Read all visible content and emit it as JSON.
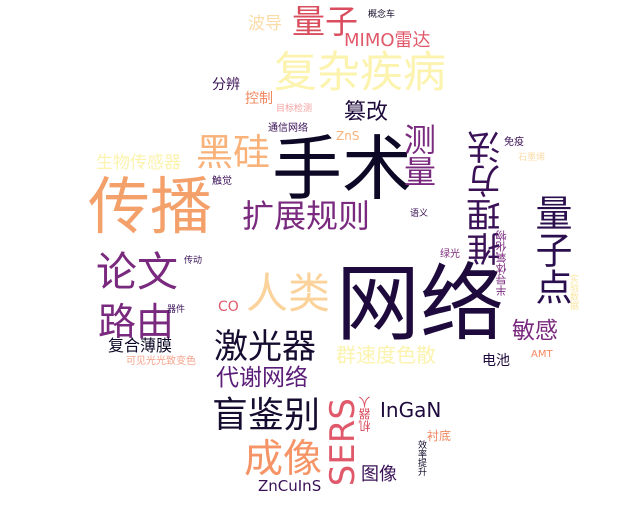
{
  "words": [
    {
      "id": "wangluo",
      "text": "网络",
      "color": "#1e0a3c"
    },
    {
      "id": "shoushu",
      "text": "手术",
      "color": "#0d0826"
    },
    {
      "id": "chuanbo",
      "text": "传播",
      "color": "#f4a06a"
    },
    {
      "id": "fuza-jibing",
      "text": "复杂疾病",
      "color": "#fbf3ae"
    },
    {
      "id": "liangzi",
      "text": "量子",
      "color": "#d94d5e"
    },
    {
      "id": "heigui",
      "text": "黑硅",
      "color": "#f8b27a"
    },
    {
      "id": "kuozhan-guize",
      "text": "扩展规则",
      "color": "#7a2a7e"
    },
    {
      "id": "celiang",
      "text": "测量",
      "color": "#7a2a7e"
    },
    {
      "id": "tuili-fangfa",
      "text": "推理方法",
      "color": "#3a1156"
    },
    {
      "id": "liangzidian",
      "text": "量子点",
      "color": "#2a0e4e"
    },
    {
      "id": "lunwen",
      "text": "论文",
      "color": "#7a2a7e"
    },
    {
      "id": "renlei",
      "text": "人类",
      "color": "#fad29a"
    },
    {
      "id": "luyou",
      "text": "路由",
      "color": "#7a2a7e"
    },
    {
      "id": "jiguangqi",
      "text": "激光器",
      "color": "#160c30"
    },
    {
      "id": "mangjianbie",
      "text": "盲鉴别",
      "color": "#160c30"
    },
    {
      "id": "chengxiang",
      "text": "成像",
      "color": "#f59466"
    },
    {
      "id": "sers",
      "text": "SERS",
      "color": "#e0596a"
    },
    {
      "id": "cuangai",
      "text": "篡改",
      "color": "#1e0a3c"
    },
    {
      "id": "mimo-leida",
      "text": "MIMO雷达",
      "color": "#e0596a"
    },
    {
      "id": "bodao",
      "text": "波导",
      "color": "#fbdca8"
    },
    {
      "id": "gainianche",
      "text": "概念车",
      "color": "#140a2a"
    },
    {
      "id": "fenbian",
      "text": "分辨",
      "color": "#3a1156"
    },
    {
      "id": "kongzhi",
      "text": "控制",
      "color": "#f28860"
    },
    {
      "id": "mubiao-jiance",
      "text": "目标检测",
      "color": "#f5a0a0"
    },
    {
      "id": "tongxin-wangluo",
      "text": "通信网络",
      "color": "#3a1156"
    },
    {
      "id": "zns",
      "text": "ZnS",
      "color": "#f8b27a"
    },
    {
      "id": "mianyi",
      "text": "免疫",
      "color": "#3a1156"
    },
    {
      "id": "shimoxi",
      "text": "石墨烯",
      "color": "#fbdca8"
    },
    {
      "id": "shengwu-chuanganqi",
      "text": "生物传感器",
      "color": "#fbf3ae"
    },
    {
      "id": "chujue",
      "text": "触觉",
      "color": "#3a1156"
    },
    {
      "id": "yuyi",
      "text": "语义",
      "color": "#3a1156"
    },
    {
      "id": "lvguang",
      "text": "绿光",
      "color": "#7a2a7e"
    },
    {
      "id": "chuandong",
      "text": "传动",
      "color": "#3a1156"
    },
    {
      "id": "bandaoti-yanghuawu",
      "text": "半导体氧化物",
      "color": "#7a2a7e"
    },
    {
      "id": "shiyan-shuju",
      "text": "实验数据",
      "color": "#fbe6a0"
    },
    {
      "id": "qijian",
      "text": "器件",
      "color": "#3a1156"
    },
    {
      "id": "co",
      "text": "CO",
      "color": "#e0596a"
    },
    {
      "id": "mingan",
      "text": "敏感",
      "color": "#7a2a7e"
    },
    {
      "id": "fuhe-baomo",
      "text": "复合薄膜",
      "color": "#0d0826"
    },
    {
      "id": "kejianguang",
      "text": "可见光光致变色",
      "color": "#f5a08a"
    },
    {
      "id": "qunsudu-sesan",
      "text": "群速度色散",
      "color": "#fbf3ae"
    },
    {
      "id": "amt",
      "text": "AMT",
      "color": "#f28860"
    },
    {
      "id": "dianchi",
      "text": "电池",
      "color": "#1e0a3c"
    },
    {
      "id": "daixie-wangluo",
      "text": "代谢网络",
      "color": "#5a1e78"
    },
    {
      "id": "ingan",
      "text": "InGaN",
      "color": "#1e0a3c"
    },
    {
      "id": "jiqiren",
      "text": "机器人",
      "color": "#d94d5e"
    },
    {
      "id": "chendi",
      "text": "衬底",
      "color": "#f28860"
    },
    {
      "id": "xiaolv-tisheng",
      "text": "效率提升",
      "color": "#0d0826"
    },
    {
      "id": "tuxiang",
      "text": "图像",
      "color": "#3a1156"
    },
    {
      "id": "zncuins",
      "text": "ZnCuInS",
      "color": "#3a1156"
    }
  ]
}
